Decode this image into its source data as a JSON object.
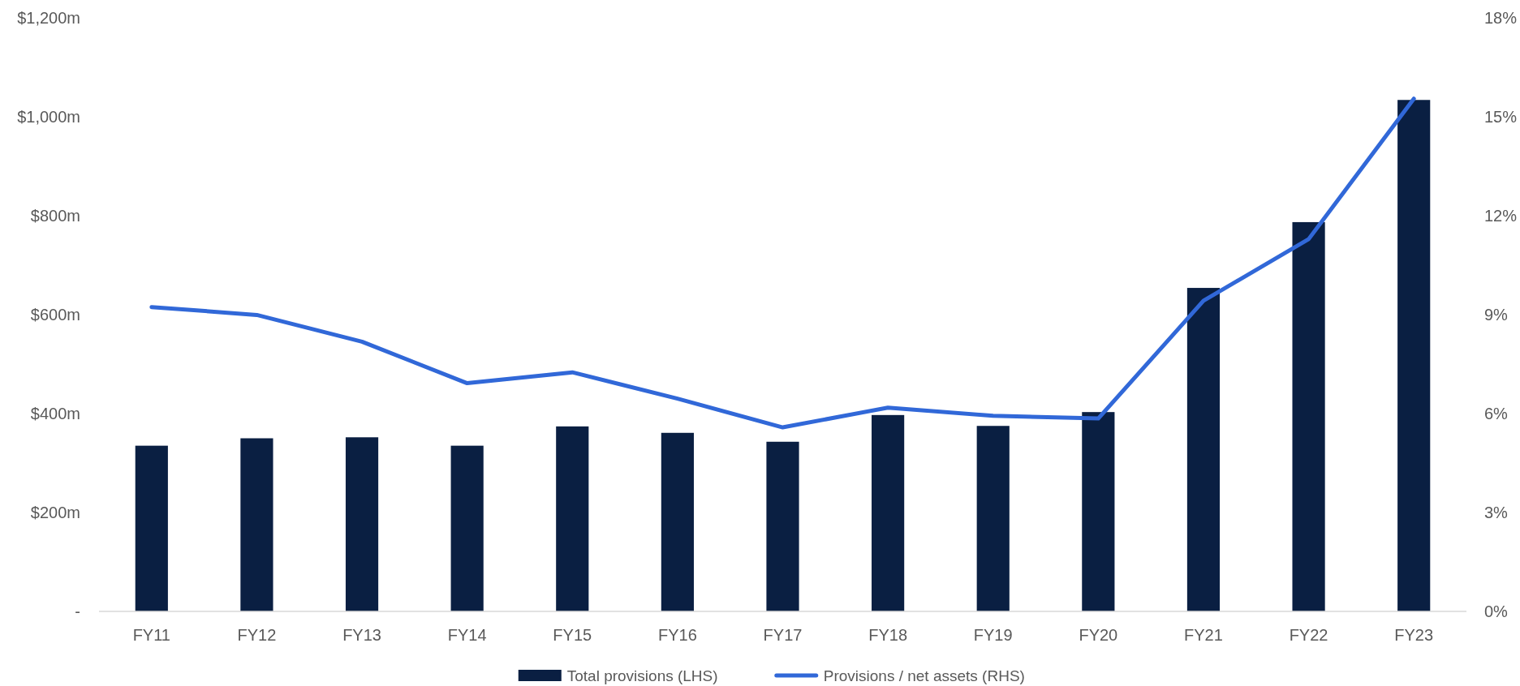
{
  "chart_data": {
    "type": "bar",
    "categories": [
      "FY11",
      "FY12",
      "FY13",
      "FY14",
      "FY15",
      "FY16",
      "FY17",
      "FY18",
      "FY19",
      "FY20",
      "FY21",
      "FY22",
      "FY23"
    ],
    "series": [
      {
        "name": "Total provisions (LHS)",
        "color": "#0a1f42",
        "values": [
          335,
          350,
          352,
          335,
          374,
          361,
          343,
          397,
          375,
          403,
          654,
          787,
          1034
        ]
      },
      {
        "name": "Provisions / net assets (RHS)",
        "type": "line",
        "axis": "y2",
        "color": "#3168d8",
        "values": [
          9.23,
          8.99,
          8.18,
          6.92,
          7.25,
          6.45,
          5.58,
          6.18,
          5.93,
          5.85,
          9.42,
          11.29,
          15.55
        ]
      }
    ],
    "ylim": [
      0,
      1200
    ],
    "yticks": [
      {
        "value": 0,
        "label": "-"
      },
      {
        "value": 200,
        "label": "$200m"
      },
      {
        "value": 400,
        "label": "$400m"
      },
      {
        "value": 600,
        "label": "$600m"
      },
      {
        "value": 800,
        "label": "$800m"
      },
      {
        "value": 1000,
        "label": "$1,000m"
      },
      {
        "value": 1200,
        "label": "$1,200m"
      }
    ],
    "y2lim": [
      0,
      18
    ],
    "y2ticks": [
      {
        "value": 0,
        "label": "0%"
      },
      {
        "value": 3,
        "label": "3%"
      },
      {
        "value": 6,
        "label": "6%"
      },
      {
        "value": 9,
        "label": "9%"
      },
      {
        "value": 12,
        "label": "12%"
      },
      {
        "value": 15,
        "label": "15%"
      },
      {
        "value": 18,
        "label": "18%"
      }
    ],
    "legend": "bottom"
  }
}
